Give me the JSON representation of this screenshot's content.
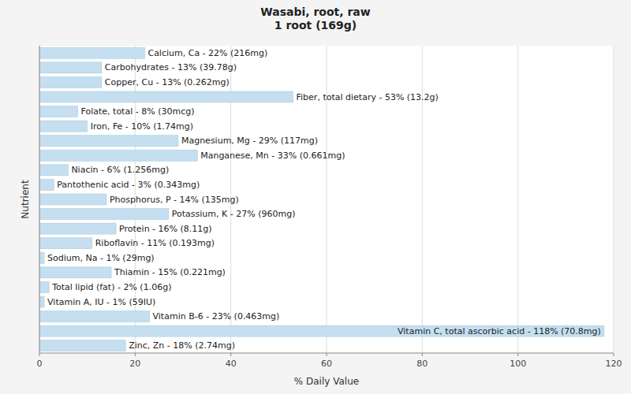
{
  "chart_data": {
    "type": "bar",
    "orientation": "horizontal",
    "title": "Wasabi, root, raw\n1 root (169g)",
    "x_label": "% Daily Value",
    "y_label": "Nutrient",
    "categories": [
      "Calcium, Ca - 22% (216mg)",
      "Carbohydrates - 13% (39.78g)",
      "Copper, Cu - 13% (0.262mg)",
      "Fiber, total dietary - 53% (13.2g)",
      "Folate, total - 8% (30mcg)",
      "Iron, Fe - 10% (1.74mg)",
      "Magnesium, Mg - 29% (117mg)",
      "Manganese, Mn - 33% (0.661mg)",
      "Niacin - 6% (1.256mg)",
      "Pantothenic acid - 3% (0.343mg)",
      "Phosphorus, P - 14% (135mg)",
      "Potassium, K - 27% (960mg)",
      "Protein - 16% (8.11g)",
      "Riboflavin - 11% (0.193mg)",
      "Sodium, Na - 1% (29mg)",
      "Thiamin - 15% (0.221mg)",
      "Total lipid (fat) - 2% (1.06g)",
      "Vitamin A, IU - 1% (59IU)",
      "Vitamin B-6 - 23% (0.463mg)",
      "Vitamin C, total ascorbic acid - 118% (70.8mg)",
      "Zinc, Zn - 18% (2.74mg)"
    ],
    "values": [
      22,
      13,
      13,
      53,
      8,
      10,
      29,
      33,
      6,
      3,
      14,
      27,
      16,
      11,
      1,
      15,
      2,
      1,
      23,
      118,
      18
    ],
    "color": "#c5dff0",
    "xlim": [
      0,
      120
    ],
    "xticks": [
      0,
      20,
      40,
      60,
      80,
      100,
      120
    ],
    "grid": true,
    "tick_labels": "x"
  }
}
